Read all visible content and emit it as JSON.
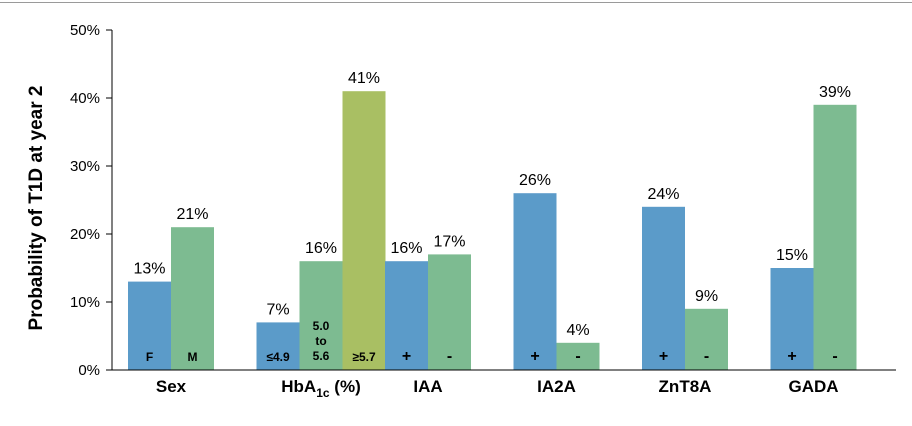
{
  "colors": {
    "blue": "#5b9bc9",
    "green": "#7dbb91",
    "olive": "#a9bf63",
    "axis": "#000000"
  },
  "chart_data": {
    "type": "bar",
    "ylabel": "Probability of T1D at year 2",
    "ylim": [
      0,
      50
    ],
    "yticks": [
      "0%",
      "10%",
      "20%",
      "30%",
      "40%",
      "50%"
    ],
    "grid": false,
    "groups": [
      {
        "category": "Sex",
        "bars": [
          {
            "label": "F",
            "value": 13,
            "data_label": "13%",
            "color": "blue"
          },
          {
            "label": "M",
            "value": 21,
            "data_label": "21%",
            "color": "green"
          }
        ]
      },
      {
        "category": "HbA1c (%)",
        "category_main": "HbA",
        "category_sub": "1c",
        "category_tail": " (%)",
        "bars": [
          {
            "label": "≤4.9",
            "value": 7,
            "data_label": "7%",
            "color": "blue"
          },
          {
            "label": "5.0 to 5.6",
            "label_lines": [
              "5.0",
              "to",
              "5.6"
            ],
            "value": 16,
            "data_label": "16%",
            "color": "green"
          },
          {
            "label": "≥5.7",
            "value": 41,
            "data_label": "41%",
            "color": "olive"
          }
        ]
      },
      {
        "category": "IAA",
        "bars": [
          {
            "label": "+",
            "value": 16,
            "data_label": "16%",
            "color": "blue"
          },
          {
            "label": "-",
            "value": 17,
            "data_label": "17%",
            "color": "green"
          }
        ]
      },
      {
        "category": "IA2A",
        "bars": [
          {
            "label": "+",
            "value": 26,
            "data_label": "26%",
            "color": "blue"
          },
          {
            "label": "-",
            "value": 4,
            "data_label": "4%",
            "color": "green"
          }
        ]
      },
      {
        "category": "ZnT8A",
        "bars": [
          {
            "label": "+",
            "value": 24,
            "data_label": "24%",
            "color": "blue"
          },
          {
            "label": "-",
            "value": 9,
            "data_label": "9%",
            "color": "green"
          }
        ]
      },
      {
        "category": "GADA",
        "bars": [
          {
            "label": "+",
            "value": 15,
            "data_label": "15%",
            "color": "blue"
          },
          {
            "label": "-",
            "value": 39,
            "data_label": "39%",
            "color": "green"
          }
        ]
      }
    ]
  }
}
